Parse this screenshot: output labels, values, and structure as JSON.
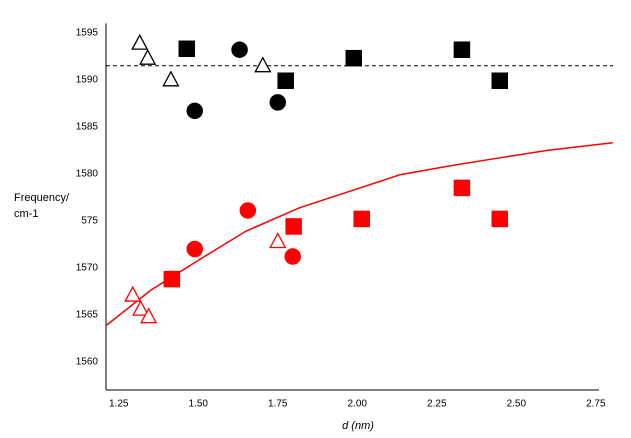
{
  "chart_data": {
    "type": "scatter",
    "xlabel": "d (nm)",
    "ylabel": [
      "Frequency/",
      "cm-1"
    ],
    "xlim": [
      1.21,
      2.76
    ],
    "ylim": [
      1557,
      1596
    ],
    "xticks": [
      1.25,
      {
        "value": 1.5,
        "label": "1.50"
      },
      1.75,
      {
        "value": 2,
        "label": "2.00"
      },
      2.25,
      {
        "value": 2.5,
        "label": "2.50"
      },
      2.75
    ],
    "yticks": [
      1595,
      1590,
      1585,
      1580,
      {
        "value": 1575,
        "label": "575"
      },
      1570,
      1565,
      1560
    ],
    "grid": false,
    "series": [
      {
        "marker": "triangle",
        "filled": false,
        "color": "#000000",
        "x": [
          1.316,
          1.341,
          1.414,
          1.703
        ],
        "values": [
          1593.9,
          1592.3,
          1590,
          1591.5
        ]
      },
      {
        "marker": "square",
        "filled": true,
        "color": "#000000",
        "x": [
          1.464,
          1.775,
          1.989,
          2.329,
          2.448
        ],
        "values": [
          1593.3,
          1589.9,
          1592.3,
          1593.2,
          1589.9
        ]
      },
      {
        "marker": "circle",
        "filled": true,
        "color": "#000000",
        "x": [
          1.489,
          1.63,
          1.75
        ],
        "values": [
          1586.7,
          1593.2,
          1587.6
        ]
      },
      {
        "marker": "triangle",
        "filled": false,
        "color": "#ff0000",
        "x": [
          1.294,
          1.319,
          1.344,
          1.75
        ],
        "values": [
          1567.1,
          1565.6,
          1564.8,
          1572.8
        ]
      },
      {
        "marker": "square",
        "filled": true,
        "color": "#ff0000",
        "x": [
          1.417,
          1.8,
          2.014,
          2.329,
          2.448
        ],
        "values": [
          1568.8,
          1574.4,
          1575.2,
          1578.5,
          1575.2
        ]
      },
      {
        "marker": "circle",
        "filled": true,
        "color": "#ff0000",
        "x": [
          1.489,
          1.656,
          1.797
        ],
        "values": [
          1572.0,
          1576.1,
          1571.2
        ]
      }
    ],
    "reference_lines": [
      {
        "y": 1591.5,
        "style": "dashed",
        "color": "#000000"
      }
    ],
    "fit_curve": {
      "color": "#ff0000",
      "x": [
        1.212,
        1.35,
        1.505,
        1.65,
        1.819,
        2.0,
        2.134,
        2.3,
        2.448,
        2.6,
        2.803
      ],
      "values": [
        1563.9,
        1567.6,
        1570.9,
        1573.9,
        1576.4,
        1578.4,
        1579.9,
        1580.9,
        1581.7,
        1582.5,
        1583.3
      ]
    }
  }
}
